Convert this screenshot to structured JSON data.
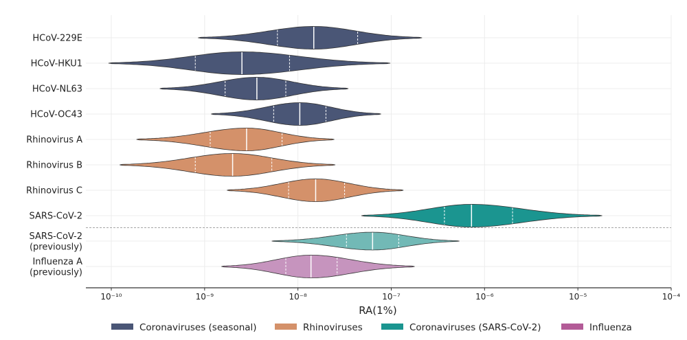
{
  "chart_data": {
    "type": "violin",
    "orientation": "horizontal",
    "xscale": "log",
    "xlabel": "RA(1%)",
    "xlim_exp": [
      -10.3,
      -4
    ],
    "x_ticks": [
      {
        "exp": -10,
        "label": "10⁻¹⁰"
      },
      {
        "exp": -9,
        "label": "10⁻⁹"
      },
      {
        "exp": -8,
        "label": "10⁻⁸"
      },
      {
        "exp": -7,
        "label": "10⁻⁷"
      },
      {
        "exp": -6,
        "label": "10⁻⁶"
      },
      {
        "exp": -5,
        "label": "10⁻⁵"
      },
      {
        "exp": -4,
        "label": "10⁻⁴"
      }
    ],
    "groups": {
      "Coronaviruses (seasonal)": "#4a5676",
      "Rhinoviruses": "#d4916a",
      "Coronaviruses (SARS-CoV-2)": "#1b9590",
      "Influenza": "#b35b97"
    },
    "violins": [
      {
        "label": [
          "HCoV-229E"
        ],
        "group": "Coronaviruses (seasonal)",
        "fill": "#4a5676",
        "min_exp": -9.07,
        "max_exp": -6.67,
        "q1_exp": -8.22,
        "median_exp": -7.83,
        "q3_exp": -7.36,
        "max_halfwidth": 0.92
      },
      {
        "label": [
          "HCoV-HKU1"
        ],
        "group": "Coronaviruses (seasonal)",
        "fill": "#4a5676",
        "min_exp": -10.03,
        "max_exp": -7.01,
        "q1_exp": -9.1,
        "median_exp": -8.6,
        "q3_exp": -8.09,
        "max_halfwidth": 0.92
      },
      {
        "label": [
          "HCoV-NL63"
        ],
        "group": "Coronaviruses (seasonal)",
        "fill": "#4a5676",
        "min_exp": -9.48,
        "max_exp": -7.46,
        "q1_exp": -8.78,
        "median_exp": -8.44,
        "q3_exp": -8.13,
        "max_halfwidth": 0.92
      },
      {
        "label": [
          "HCoV-OC43"
        ],
        "group": "Coronaviruses (seasonal)",
        "fill": "#4a5676",
        "min_exp": -8.93,
        "max_exp": -7.11,
        "q1_exp": -8.26,
        "median_exp": -7.98,
        "q3_exp": -7.7,
        "max_halfwidth": 0.92
      },
      {
        "label": [
          "Rhinovirus A"
        ],
        "group": "Rhinoviruses",
        "fill": "#d4916a",
        "min_exp": -9.73,
        "max_exp": -7.61,
        "q1_exp": -8.94,
        "median_exp": -8.55,
        "q3_exp": -8.17,
        "max_halfwidth": 0.92
      },
      {
        "label": [
          "Rhinovirus B"
        ],
        "group": "Rhinoviruses",
        "fill": "#d4916a",
        "min_exp": -9.91,
        "max_exp": -7.6,
        "q1_exp": -9.1,
        "median_exp": -8.7,
        "q3_exp": -8.28,
        "max_halfwidth": 0.92
      },
      {
        "label": [
          "Rhinovirus C"
        ],
        "group": "Rhinoviruses",
        "fill": "#d4916a",
        "min_exp": -8.76,
        "max_exp": -6.87,
        "q1_exp": -8.1,
        "median_exp": -7.81,
        "q3_exp": -7.5,
        "max_halfwidth": 0.92
      },
      {
        "label": [
          "SARS-CoV-2"
        ],
        "group": "Coronaviruses (SARS-CoV-2)",
        "fill": "#1b9590",
        "min_exp": -7.32,
        "max_exp": -4.74,
        "q1_exp": -6.43,
        "median_exp": -6.14,
        "q3_exp": -5.7,
        "max_halfwidth": 0.92
      },
      {
        "label": [
          "SARS-CoV-2",
          "(previously)"
        ],
        "group": "Coronaviruses (SARS-CoV-2)",
        "fill": "#72b9b6",
        "min_exp": -8.28,
        "max_exp": -6.27,
        "q1_exp": -7.48,
        "median_exp": -7.2,
        "q3_exp": -6.92,
        "max_halfwidth": 0.72
      },
      {
        "label": [
          "Influenza A",
          "(previously)"
        ],
        "group": "Influenza",
        "fill": "#c694be",
        "min_exp": -8.82,
        "max_exp": -6.75,
        "q1_exp": -8.13,
        "median_exp": -7.86,
        "q3_exp": -7.58,
        "max_halfwidth": 0.92
      }
    ],
    "separator_after_index": 7,
    "legend": {
      "placement": "bottom-center",
      "entries": [
        {
          "label": "Coronaviruses (seasonal)",
          "color": "#4a5676"
        },
        {
          "label": "Rhinoviruses",
          "color": "#d4916a"
        },
        {
          "label": "Coronaviruses (SARS-CoV-2)",
          "color": "#1b9590"
        },
        {
          "label": "Influenza",
          "color": "#b35b97"
        }
      ]
    },
    "grid": true
  }
}
